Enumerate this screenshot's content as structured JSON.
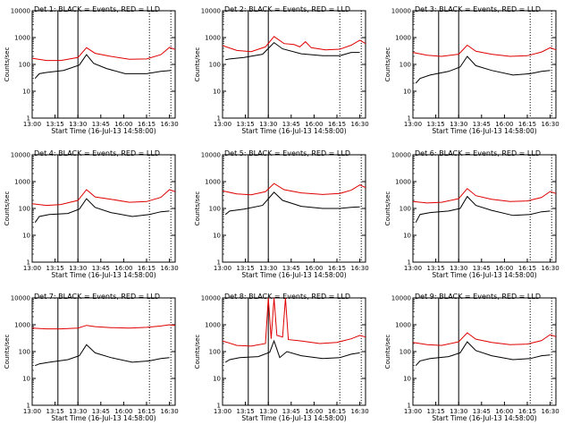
{
  "chart_data": {
    "type": "line",
    "yscale": "log",
    "ylim": [
      1,
      10000
    ],
    "xlim": [
      "13:00",
      "16:40"
    ],
    "xticks": [
      "13:00",
      "13:15",
      "13:30",
      "13:45",
      "16:00",
      "16:15",
      "16:30"
    ],
    "yticks": [
      "1",
      "10",
      "100",
      "1000",
      "10000"
    ],
    "xlabel": "Start Time (16-Jul-13 14:58:00)",
    "ylabel": "Counts/sec",
    "series_colors": {
      "events": "#000000",
      "lld": "#e00000"
    },
    "panels": [
      {
        "title": "Det 1: BLACK = Events, RED = LLD",
        "events": [
          [
            0.02,
            30
          ],
          [
            0.05,
            45
          ],
          [
            0.1,
            50
          ],
          [
            0.22,
            60
          ],
          [
            0.33,
            95
          ],
          [
            0.38,
            230
          ],
          [
            0.43,
            110
          ],
          [
            0.52,
            70
          ],
          [
            0.65,
            45
          ],
          [
            0.8,
            45
          ],
          [
            0.9,
            55
          ],
          [
            0.97,
            60
          ]
        ],
        "lld": [
          [
            0.0,
            170
          ],
          [
            0.1,
            140
          ],
          [
            0.2,
            140
          ],
          [
            0.32,
            180
          ],
          [
            0.38,
            420
          ],
          [
            0.44,
            260
          ],
          [
            0.55,
            200
          ],
          [
            0.68,
            155
          ],
          [
            0.8,
            160
          ],
          [
            0.9,
            230
          ],
          [
            0.96,
            430
          ],
          [
            1.0,
            360
          ]
        ],
        "vlines_solid": [
          0.18,
          0.32
        ],
        "vlines_dotted": [
          0.82,
          0.97
        ]
      },
      {
        "title": "Det 2: BLACK = Events, RED = LLD",
        "events": [
          [
            0.02,
            150
          ],
          [
            0.05,
            160
          ],
          [
            0.15,
            180
          ],
          [
            0.28,
            240
          ],
          [
            0.36,
            650
          ],
          [
            0.42,
            380
          ],
          [
            0.55,
            250
          ],
          [
            0.7,
            210
          ],
          [
            0.82,
            210
          ],
          [
            0.9,
            280
          ],
          [
            0.96,
            280
          ]
        ],
        "lld": [
          [
            0.0,
            500
          ],
          [
            0.1,
            330
          ],
          [
            0.2,
            300
          ],
          [
            0.3,
            450
          ],
          [
            0.36,
            1100
          ],
          [
            0.43,
            600
          ],
          [
            0.5,
            550
          ],
          [
            0.54,
            450
          ],
          [
            0.58,
            700
          ],
          [
            0.62,
            420
          ],
          [
            0.72,
            350
          ],
          [
            0.82,
            370
          ],
          [
            0.9,
            520
          ],
          [
            0.96,
            800
          ],
          [
            1.0,
            600
          ]
        ],
        "vlines_solid": [
          0.18,
          0.32
        ],
        "vlines_dotted": [
          0.82,
          0.97
        ]
      },
      {
        "title": "Det 3: BLACK = Events, RED = LLD",
        "events": [
          [
            0.02,
            20
          ],
          [
            0.05,
            30
          ],
          [
            0.12,
            40
          ],
          [
            0.25,
            55
          ],
          [
            0.33,
            80
          ],
          [
            0.38,
            200
          ],
          [
            0.44,
            90
          ],
          [
            0.55,
            60
          ],
          [
            0.7,
            40
          ],
          [
            0.82,
            45
          ],
          [
            0.9,
            55
          ],
          [
            0.96,
            60
          ]
        ],
        "lld": [
          [
            0.0,
            280
          ],
          [
            0.1,
            220
          ],
          [
            0.2,
            200
          ],
          [
            0.32,
            240
          ],
          [
            0.38,
            520
          ],
          [
            0.44,
            310
          ],
          [
            0.55,
            240
          ],
          [
            0.68,
            200
          ],
          [
            0.8,
            210
          ],
          [
            0.9,
            290
          ],
          [
            0.96,
            420
          ],
          [
            1.0,
            350
          ]
        ],
        "vlines_solid": [
          0.18,
          0.32
        ],
        "vlines_dotted": [
          0.82,
          0.97
        ]
      },
      {
        "title": "Det 4: BLACK = Events, RED = LLD",
        "events": [
          [
            0.02,
            30
          ],
          [
            0.05,
            50
          ],
          [
            0.12,
            60
          ],
          [
            0.25,
            65
          ],
          [
            0.33,
            95
          ],
          [
            0.38,
            230
          ],
          [
            0.44,
            110
          ],
          [
            0.55,
            70
          ],
          [
            0.7,
            50
          ],
          [
            0.82,
            60
          ],
          [
            0.9,
            75
          ],
          [
            0.96,
            80
          ]
        ],
        "lld": [
          [
            0.0,
            150
          ],
          [
            0.1,
            130
          ],
          [
            0.2,
            140
          ],
          [
            0.32,
            200
          ],
          [
            0.38,
            500
          ],
          [
            0.44,
            270
          ],
          [
            0.55,
            220
          ],
          [
            0.68,
            170
          ],
          [
            0.8,
            180
          ],
          [
            0.9,
            260
          ],
          [
            0.96,
            500
          ],
          [
            1.0,
            420
          ]
        ],
        "vlines_solid": [
          0.18,
          0.32
        ],
        "vlines_dotted": [
          0.82,
          0.97
        ]
      },
      {
        "title": "Det 5: BLACK = Events, RED = LLD",
        "events": [
          [
            0.02,
            60
          ],
          [
            0.05,
            80
          ],
          [
            0.15,
            95
          ],
          [
            0.28,
            130
          ],
          [
            0.36,
            400
          ],
          [
            0.42,
            200
          ],
          [
            0.55,
            120
          ],
          [
            0.7,
            100
          ],
          [
            0.82,
            100
          ],
          [
            0.9,
            110
          ],
          [
            0.96,
            115
          ]
        ],
        "lld": [
          [
            0.0,
            450
          ],
          [
            0.1,
            350
          ],
          [
            0.2,
            320
          ],
          [
            0.3,
            420
          ],
          [
            0.36,
            850
          ],
          [
            0.43,
            500
          ],
          [
            0.55,
            380
          ],
          [
            0.7,
            330
          ],
          [
            0.82,
            360
          ],
          [
            0.9,
            480
          ],
          [
            0.96,
            750
          ],
          [
            1.0,
            600
          ]
        ],
        "vlines_solid": [
          0.18,
          0.32
        ],
        "vlines_dotted": [
          0.82,
          0.97
        ]
      },
      {
        "title": "Det 6: BLACK = Events, RED = LLD",
        "events": [
          [
            0.02,
            30
          ],
          [
            0.05,
            60
          ],
          [
            0.12,
            70
          ],
          [
            0.25,
            80
          ],
          [
            0.33,
            100
          ],
          [
            0.38,
            280
          ],
          [
            0.44,
            130
          ],
          [
            0.55,
            85
          ],
          [
            0.7,
            55
          ],
          [
            0.82,
            60
          ],
          [
            0.9,
            75
          ],
          [
            0.96,
            80
          ]
        ],
        "lld": [
          [
            0.0,
            180
          ],
          [
            0.1,
            160
          ],
          [
            0.2,
            170
          ],
          [
            0.32,
            230
          ],
          [
            0.38,
            550
          ],
          [
            0.44,
            300
          ],
          [
            0.55,
            220
          ],
          [
            0.68,
            180
          ],
          [
            0.8,
            190
          ],
          [
            0.9,
            260
          ],
          [
            0.96,
            430
          ],
          [
            1.0,
            360
          ]
        ],
        "vlines_solid": [
          0.18,
          0.32
        ],
        "vlines_dotted": [
          0.82,
          0.97
        ]
      },
      {
        "title": "Det 7: BLACK = Events, RED = LLD",
        "events": [
          [
            0.02,
            30
          ],
          [
            0.05,
            35
          ],
          [
            0.12,
            40
          ],
          [
            0.25,
            50
          ],
          [
            0.33,
            70
          ],
          [
            0.38,
            180
          ],
          [
            0.44,
            90
          ],
          [
            0.55,
            60
          ],
          [
            0.7,
            40
          ],
          [
            0.82,
            45
          ],
          [
            0.9,
            55
          ],
          [
            0.96,
            60
          ]
        ],
        "lld": [
          [
            0.0,
            750
          ],
          [
            0.1,
            700
          ],
          [
            0.2,
            700
          ],
          [
            0.32,
            750
          ],
          [
            0.38,
            950
          ],
          [
            0.44,
            850
          ],
          [
            0.55,
            780
          ],
          [
            0.68,
            750
          ],
          [
            0.8,
            800
          ],
          [
            0.9,
            900
          ],
          [
            0.96,
            1000
          ],
          [
            1.0,
            950
          ]
        ],
        "vlines_solid": [
          0.18,
          0.32
        ],
        "vlines_dotted": [
          0.82,
          0.97
        ]
      },
      {
        "title": "Det 8: BLACK = Events, RED = LLD",
        "events": [
          [
            0.02,
            40
          ],
          [
            0.05,
            50
          ],
          [
            0.12,
            60
          ],
          [
            0.25,
            65
          ],
          [
            0.33,
            95
          ],
          [
            0.36,
            250
          ],
          [
            0.4,
            60
          ],
          [
            0.45,
            100
          ],
          [
            0.55,
            70
          ],
          [
            0.7,
            55
          ],
          [
            0.82,
            60
          ],
          [
            0.9,
            80
          ],
          [
            0.96,
            90
          ]
        ],
        "lld": [
          [
            0.0,
            250
          ],
          [
            0.1,
            170
          ],
          [
            0.2,
            160
          ],
          [
            0.3,
            200
          ],
          [
            0.32,
            10000
          ],
          [
            0.34,
            300
          ],
          [
            0.36,
            10000
          ],
          [
            0.38,
            400
          ],
          [
            0.42,
            350
          ],
          [
            0.44,
            10000
          ],
          [
            0.46,
            280
          ],
          [
            0.55,
            250
          ],
          [
            0.68,
            200
          ],
          [
            0.8,
            220
          ],
          [
            0.9,
            300
          ],
          [
            0.96,
            400
          ],
          [
            1.0,
            350
          ]
        ],
        "vlines_solid": [
          0.18,
          0.32
        ],
        "vlines_dotted": [
          0.82,
          0.97
        ]
      },
      {
        "title": "Det 9: BLACK = Events, RED = LLD",
        "events": [
          [
            0.02,
            30
          ],
          [
            0.05,
            45
          ],
          [
            0.12,
            55
          ],
          [
            0.25,
            65
          ],
          [
            0.33,
            90
          ],
          [
            0.38,
            230
          ],
          [
            0.44,
            110
          ],
          [
            0.55,
            70
          ],
          [
            0.7,
            50
          ],
          [
            0.82,
            55
          ],
          [
            0.9,
            70
          ],
          [
            0.96,
            75
          ]
        ],
        "lld": [
          [
            0.0,
            220
          ],
          [
            0.1,
            180
          ],
          [
            0.2,
            170
          ],
          [
            0.32,
            230
          ],
          [
            0.38,
            500
          ],
          [
            0.44,
            290
          ],
          [
            0.55,
            220
          ],
          [
            0.68,
            180
          ],
          [
            0.8,
            190
          ],
          [
            0.9,
            260
          ],
          [
            0.96,
            430
          ],
          [
            1.0,
            360
          ]
        ],
        "vlines_solid": [
          0.18,
          0.32
        ],
        "vlines_dotted": [
          0.82,
          0.97
        ]
      }
    ]
  }
}
